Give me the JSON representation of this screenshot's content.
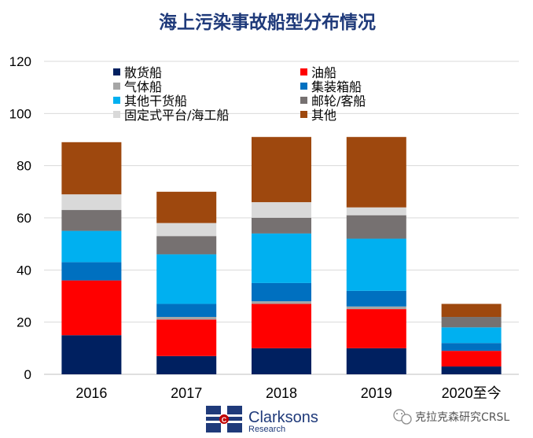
{
  "chart_data": {
    "type": "bar",
    "stacked": true,
    "title": "海上污染事故船型分布情况",
    "xlabel": "",
    "ylabel": "",
    "ylim": [
      0,
      120
    ],
    "yticks": [
      0,
      20,
      40,
      60,
      80,
      100,
      120
    ],
    "grid": true,
    "legend_position": "top",
    "categories": [
      "2016",
      "2017",
      "2018",
      "2019",
      "2020至今"
    ],
    "series": [
      {
        "name": "散货船",
        "color": "#002060",
        "values": [
          15,
          7,
          10,
          10,
          3
        ]
      },
      {
        "name": "油船",
        "color": "#FF0000",
        "values": [
          21,
          14,
          17,
          15,
          6
        ]
      },
      {
        "name": "气体船",
        "color": "#A6A6A6",
        "values": [
          0,
          1,
          1,
          1,
          0
        ]
      },
      {
        "name": "集装箱船",
        "color": "#0070C0",
        "values": [
          7,
          5,
          7,
          6,
          3
        ]
      },
      {
        "name": "其他干货船",
        "color": "#00B0F0",
        "values": [
          12,
          19,
          19,
          20,
          6
        ]
      },
      {
        "name": "邮轮/客船",
        "color": "#767171",
        "values": [
          8,
          7,
          6,
          9,
          4
        ]
      },
      {
        "name": "固定式平台/海工船",
        "color": "#D9D9D9",
        "values": [
          6,
          5,
          6,
          3,
          0
        ]
      },
      {
        "name": "其他",
        "color": "#9E480E",
        "values": [
          20,
          12,
          25,
          27,
          5
        ]
      }
    ]
  },
  "footer": {
    "logo_name": "Clarksons",
    "logo_sub": "Research",
    "watermark": "克拉克森研究CRSL"
  }
}
